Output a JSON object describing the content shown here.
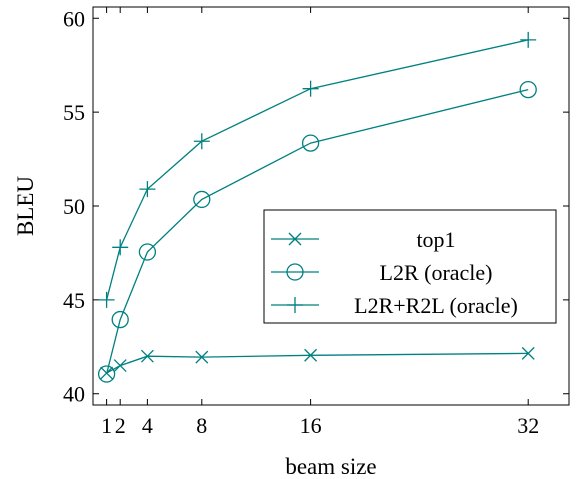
{
  "chart_data": {
    "type": "line",
    "title": "",
    "xlabel": "beam size",
    "ylabel": "BLEU",
    "xlim": [
      0,
      35
    ],
    "ylim": [
      39.4,
      60.6
    ],
    "xticks": [
      1,
      2,
      4,
      8,
      16,
      32
    ],
    "xtick_labels": [
      "1",
      "2",
      "4",
      "8",
      "16",
      "32"
    ],
    "yticks": [
      40,
      45,
      50,
      55,
      60
    ],
    "ytick_labels": [
      "40",
      "45",
      "50",
      "55",
      "60"
    ],
    "grid": false,
    "legend_position": "center-right",
    "x": [
      1,
      2,
      4,
      8,
      16,
      32
    ],
    "series": [
      {
        "name": "top1",
        "marker": "x",
        "color": "#008080",
        "values": [
          41.1,
          41.5,
          42.0,
          41.95,
          42.05,
          42.15
        ]
      },
      {
        "name": "L2R (oracle)",
        "marker": "circle",
        "color": "#008080",
        "values": [
          41.05,
          43.95,
          47.55,
          50.35,
          53.35,
          56.2
        ]
      },
      {
        "name": "L2R+R2L (oracle)",
        "marker": "plus",
        "color": "#008080",
        "values": [
          45.0,
          47.8,
          50.9,
          53.45,
          56.25,
          58.85
        ]
      }
    ]
  }
}
